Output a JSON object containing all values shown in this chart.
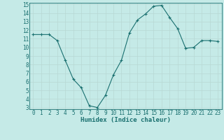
{
  "x": [
    0,
    1,
    2,
    3,
    4,
    5,
    6,
    7,
    8,
    9,
    10,
    11,
    12,
    13,
    14,
    15,
    16,
    17,
    18,
    19,
    20,
    21,
    22,
    23
  ],
  "y": [
    11.5,
    11.5,
    11.5,
    10.8,
    8.5,
    6.3,
    5.3,
    3.2,
    3.0,
    4.4,
    6.8,
    8.5,
    11.7,
    13.2,
    13.9,
    14.8,
    14.9,
    13.5,
    12.2,
    9.9,
    10.0,
    10.8,
    10.8,
    10.7
  ],
  "xlabel": "Humidex (Indice chaleur)",
  "xlim": [
    -0.5,
    23.5
  ],
  "ylim": [
    2.8,
    15.2
  ],
  "yticks": [
    3,
    4,
    5,
    6,
    7,
    8,
    9,
    10,
    11,
    12,
    13,
    14,
    15
  ],
  "xticks": [
    0,
    1,
    2,
    3,
    4,
    5,
    6,
    7,
    8,
    9,
    10,
    11,
    12,
    13,
    14,
    15,
    16,
    17,
    18,
    19,
    20,
    21,
    22,
    23
  ],
  "bg_color": "#c5eae7",
  "grid_color": "#b8d8d4",
  "line_color": "#1a7070",
  "marker_color": "#1a7070",
  "xlabel_color": "#1a7070",
  "xlabel_fontsize": 6.5,
  "tick_fontsize": 5.5,
  "tick_color": "#1a7070",
  "spine_color": "#1a7070"
}
